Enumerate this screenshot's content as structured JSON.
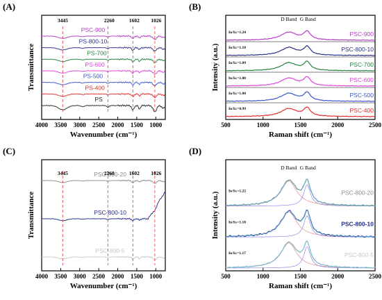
{
  "chart_data": [
    {
      "id": "A",
      "panel_label": "(A)",
      "type": "line",
      "xlabel": "Wavenumber (cm⁻¹)",
      "ylabel": "Transmittance",
      "xlim": [
        4000,
        750
      ],
      "x_reversed": true,
      "xticks": [
        4000,
        3500,
        3000,
        2500,
        2000,
        1500,
        1000
      ],
      "yaxis_ticks_shown": false,
      "peak_lines": [
        3445,
        2260,
        1602,
        1026
      ],
      "peak_labels": [
        "3445",
        "2260",
        "1602",
        "1026"
      ],
      "series": [
        {
          "name": "PSC-900",
          "color": "#b53ac7",
          "label_x": 2650
        },
        {
          "name": "PS-800-10",
          "color": "#2a2f86",
          "label_x": 2650
        },
        {
          "name": "PS-700",
          "color": "#23843c",
          "label_x": 2550
        },
        {
          "name": "PS-600",
          "color": "#e040e0",
          "label_x": 2600
        },
        {
          "name": "PS-500",
          "color": "#3a55c9",
          "label_x": 2650
        },
        {
          "name": "PS-400",
          "color": "#e02a2a",
          "label_x": 2600
        },
        {
          "name": "PS",
          "color": "#222222",
          "label_x": 2500
        }
      ]
    },
    {
      "id": "B",
      "panel_label": "(B)",
      "type": "line",
      "xlabel": "Raman shift (cm⁻¹)",
      "ylabel": "Intensity (a.u.)",
      "xlim": [
        500,
        2500
      ],
      "xticks": [
        500,
        1000,
        1500,
        2000,
        2500
      ],
      "yaxis_ticks_shown": false,
      "band_labels": [
        "D Band",
        "G Band"
      ],
      "series": [
        {
          "name": "PSC-900",
          "color": "#b53ac7",
          "ratio": "Iᴅ/Iɢ=1.24"
        },
        {
          "name": "PSC-800-10",
          "color": "#2a2f86",
          "ratio": "Iᴅ/Iɢ=1.18"
        },
        {
          "name": "PSC-700",
          "color": "#23843c",
          "ratio": "Iᴅ/Iɢ=1.09"
        },
        {
          "name": "PSC-600",
          "color": "#e040e0",
          "ratio": "Iᴅ/Iɢ=1.08"
        },
        {
          "name": "PSC-500",
          "color": "#3a55c9",
          "ratio": "Iᴅ/Iɢ=1.00"
        },
        {
          "name": "PSC-400",
          "color": "#e02a2a",
          "ratio": "Iᴅ/Iɢ=0.99"
        }
      ]
    },
    {
      "id": "C",
      "panel_label": "(C)",
      "type": "line",
      "xlabel": "Wavenumber (cm⁻¹)",
      "ylabel": "Transmittance",
      "xlim": [
        4000,
        750
      ],
      "x_reversed": true,
      "xticks": [
        4000,
        3500,
        3000,
        2500,
        2000,
        1500,
        1000
      ],
      "yaxis_ticks_shown": false,
      "peak_lines": [
        3445,
        2260,
        1602,
        1026
      ],
      "peak_labels": [
        "3445",
        "2260",
        "1602",
        "1026"
      ],
      "series": [
        {
          "name": "PSC-800-20",
          "color": "#8a8a8a"
        },
        {
          "name": "PSC-800-10",
          "color": "#1f2a8c"
        },
        {
          "name": "PSC-800-5",
          "color": "#c7c7c7"
        }
      ]
    },
    {
      "id": "D",
      "panel_label": "(D)",
      "type": "line",
      "xlabel": "Raman shift (cm⁻¹)",
      "ylabel": "Intensity (a.u.)",
      "xlim": [
        500,
        2500
      ],
      "xticks": [
        500,
        1000,
        1500,
        2000,
        2500
      ],
      "yaxis_ticks_shown": false,
      "band_labels": [
        "D Band",
        "G Band"
      ],
      "series": [
        {
          "name": "PSC-800-20",
          "color": "#8a8a8a",
          "ratio": "Iᴅ/Iɢ=1.22",
          "label_bold": false
        },
        {
          "name": "PSC-800-10",
          "color": "#1f2a8c",
          "ratio": "Iᴅ/Iɢ=1.18",
          "label_bold": true
        },
        {
          "name": "PSC-800-5",
          "color": "#c7c7c7",
          "ratio": "Iᴅ/Iɢ=1.17",
          "label_bold": false
        }
      ],
      "fit_colors": {
        "d_fit": "#e58a8a",
        "g_fit": "#8a8ae5",
        "sum_fit": "#5cb8d8"
      }
    }
  ]
}
